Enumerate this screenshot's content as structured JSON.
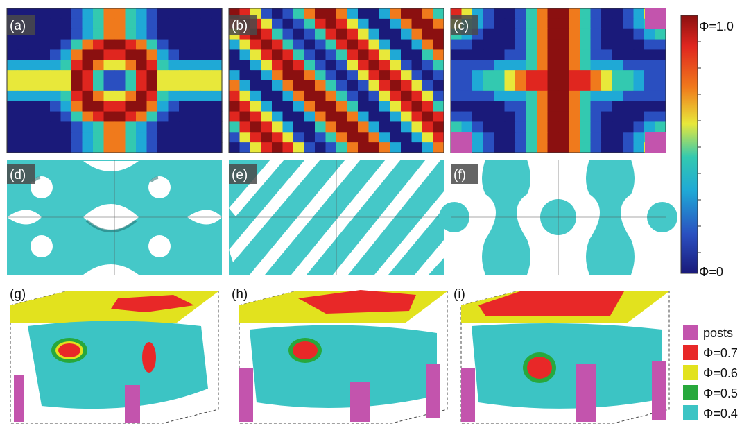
{
  "panels": [
    {
      "id": "a",
      "label": "(a)",
      "kind": "heatmap",
      "pattern": "ring"
    },
    {
      "id": "b",
      "label": "(b)",
      "kind": "heatmap",
      "pattern": "diagonal"
    },
    {
      "id": "c",
      "label": "(c)",
      "kind": "heatmap",
      "pattern": "cross"
    },
    {
      "id": "d",
      "label": "(d)",
      "kind": "isosurface-top",
      "pattern": "holes"
    },
    {
      "id": "e",
      "label": "(e)",
      "kind": "isosurface-top",
      "pattern": "diagonal-stripes"
    },
    {
      "id": "f",
      "label": "(f)",
      "kind": "isosurface-top",
      "pattern": "beads"
    },
    {
      "id": "g",
      "label": "(g)",
      "kind": "isosurface-3d"
    },
    {
      "id": "h",
      "label": "(h)",
      "kind": "isosurface-3d"
    },
    {
      "id": "i",
      "label": "(i)",
      "kind": "isosurface-3d"
    }
  ],
  "colorbar": {
    "max_label": "Φ=1.0",
    "min_label": "Φ=0",
    "range": [
      0,
      1.0
    ],
    "colormap": [
      "#1a1a7a",
      "#2a4fc0",
      "#1fa9d6",
      "#33c9b0",
      "#e8e83a",
      "#f07a1c",
      "#e0261f",
      "#8b1010"
    ]
  },
  "legend": [
    {
      "label": "posts",
      "color": "#c354ad"
    },
    {
      "label": "Φ=0.7",
      "color": "#e82828"
    },
    {
      "label": "Φ=0.6",
      "color": "#e2e21e"
    },
    {
      "label": "Φ=0.5",
      "color": "#27a83c"
    },
    {
      "label": "Φ=0.4",
      "color": "#3cc4c4"
    }
  ]
}
